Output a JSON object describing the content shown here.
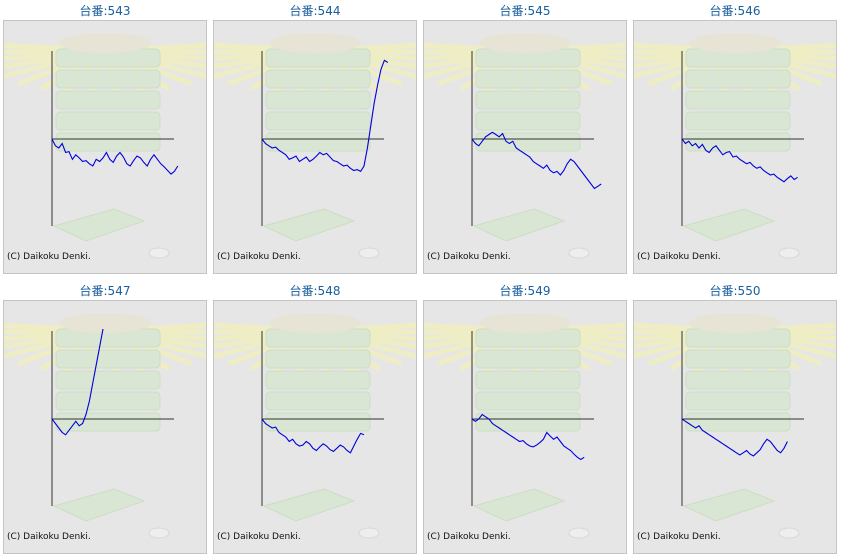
{
  "copyright": "(C) Daikoku Denki.",
  "colors": {
    "title": "#1a5fa0",
    "line": "#0000dd",
    "axis": "#333333",
    "panel": "#e6e6e6"
  },
  "chart_data": [
    {
      "type": "line",
      "title": "台番:543",
      "points": [
        0,
        -0.15,
        -0.2,
        -0.1,
        -0.3,
        -0.28,
        -0.45,
        -0.35,
        -0.42,
        -0.5,
        -0.48,
        -0.55,
        -0.6,
        -0.45,
        -0.5,
        -0.42,
        -0.3,
        -0.45,
        -0.52,
        -0.38,
        -0.3,
        -0.4,
        -0.55,
        -0.6,
        -0.48,
        -0.38,
        -0.42,
        -0.52,
        -0.6,
        -0.45,
        -0.35,
        -0.45,
        -0.55,
        -0.62,
        -0.7,
        -0.78,
        -0.72,
        -0.6
      ]
    },
    {
      "type": "line",
      "title": "台番:544",
      "points": [
        0,
        -0.1,
        -0.15,
        -0.2,
        -0.18,
        -0.25,
        -0.3,
        -0.35,
        -0.45,
        -0.42,
        -0.38,
        -0.5,
        -0.45,
        -0.4,
        -0.5,
        -0.45,
        -0.38,
        -0.3,
        -0.35,
        -0.32,
        -0.4,
        -0.48,
        -0.5,
        -0.55,
        -0.6,
        -0.58,
        -0.65,
        -0.7,
        -0.68,
        -0.72,
        -0.6,
        -0.2,
        0.3,
        0.8,
        1.2,
        1.55,
        1.75,
        1.7
      ]
    },
    {
      "type": "line",
      "title": "台番:545",
      "points": [
        0,
        -0.1,
        -0.15,
        -0.05,
        0.05,
        0.1,
        0.15,
        0.1,
        0.05,
        0.12,
        -0.05,
        -0.1,
        -0.05,
        -0.2,
        -0.25,
        -0.3,
        -0.35,
        -0.4,
        -0.5,
        -0.55,
        -0.6,
        -0.65,
        -0.58,
        -0.7,
        -0.75,
        -0.72,
        -0.8,
        -0.7,
        -0.55,
        -0.45,
        -0.5,
        -0.6,
        -0.7,
        -0.8,
        -0.9,
        -1.0,
        -1.1,
        -1.05,
        -1.0
      ]
    },
    {
      "type": "line",
      "title": "台番:546",
      "points": [
        0,
        -0.1,
        -0.05,
        -0.15,
        -0.1,
        -0.2,
        -0.12,
        -0.25,
        -0.3,
        -0.2,
        -0.15,
        -0.25,
        -0.35,
        -0.3,
        -0.28,
        -0.4,
        -0.38,
        -0.45,
        -0.5,
        -0.55,
        -0.52,
        -0.6,
        -0.65,
        -0.62,
        -0.7,
        -0.75,
        -0.8,
        -0.78,
        -0.85,
        -0.9,
        -0.95,
        -0.88,
        -0.82,
        -0.9,
        -0.85
      ]
    },
    {
      "type": "line",
      "title": "台番:547",
      "points": [
        0,
        -0.1,
        -0.2,
        -0.3,
        -0.35,
        -0.25,
        -0.15,
        -0.05,
        -0.15,
        -0.1,
        0.1,
        0.4,
        0.8,
        1.2,
        1.6,
        2.0
      ]
    },
    {
      "type": "line",
      "title": "台番:548",
      "points": [
        0,
        -0.1,
        -0.15,
        -0.2,
        -0.18,
        -0.3,
        -0.35,
        -0.4,
        -0.5,
        -0.45,
        -0.55,
        -0.6,
        -0.58,
        -0.5,
        -0.55,
        -0.65,
        -0.7,
        -0.62,
        -0.55,
        -0.6,
        -0.68,
        -0.72,
        -0.65,
        -0.58,
        -0.62,
        -0.7,
        -0.75,
        -0.6,
        -0.45,
        -0.32,
        -0.35
      ]
    },
    {
      "type": "line",
      "title": "台番:549",
      "points": [
        0,
        -0.05,
        0,
        0.1,
        0.05,
        0,
        -0.1,
        -0.15,
        -0.2,
        -0.25,
        -0.3,
        -0.35,
        -0.4,
        -0.45,
        -0.5,
        -0.48,
        -0.55,
        -0.6,
        -0.62,
        -0.58,
        -0.52,
        -0.45,
        -0.3,
        -0.38,
        -0.45,
        -0.4,
        -0.5,
        -0.6,
        -0.65,
        -0.7,
        -0.78,
        -0.85,
        -0.9,
        -0.85
      ]
    },
    {
      "type": "line",
      "title": "台番:550",
      "points": [
        0,
        -0.05,
        -0.1,
        -0.15,
        -0.2,
        -0.15,
        -0.25,
        -0.3,
        -0.35,
        -0.4,
        -0.45,
        -0.5,
        -0.55,
        -0.6,
        -0.65,
        -0.7,
        -0.75,
        -0.8,
        -0.75,
        -0.7,
        -0.78,
        -0.82,
        -0.75,
        -0.68,
        -0.55,
        -0.45,
        -0.5,
        -0.6,
        -0.7,
        -0.75,
        -0.65,
        -0.5
      ]
    }
  ]
}
